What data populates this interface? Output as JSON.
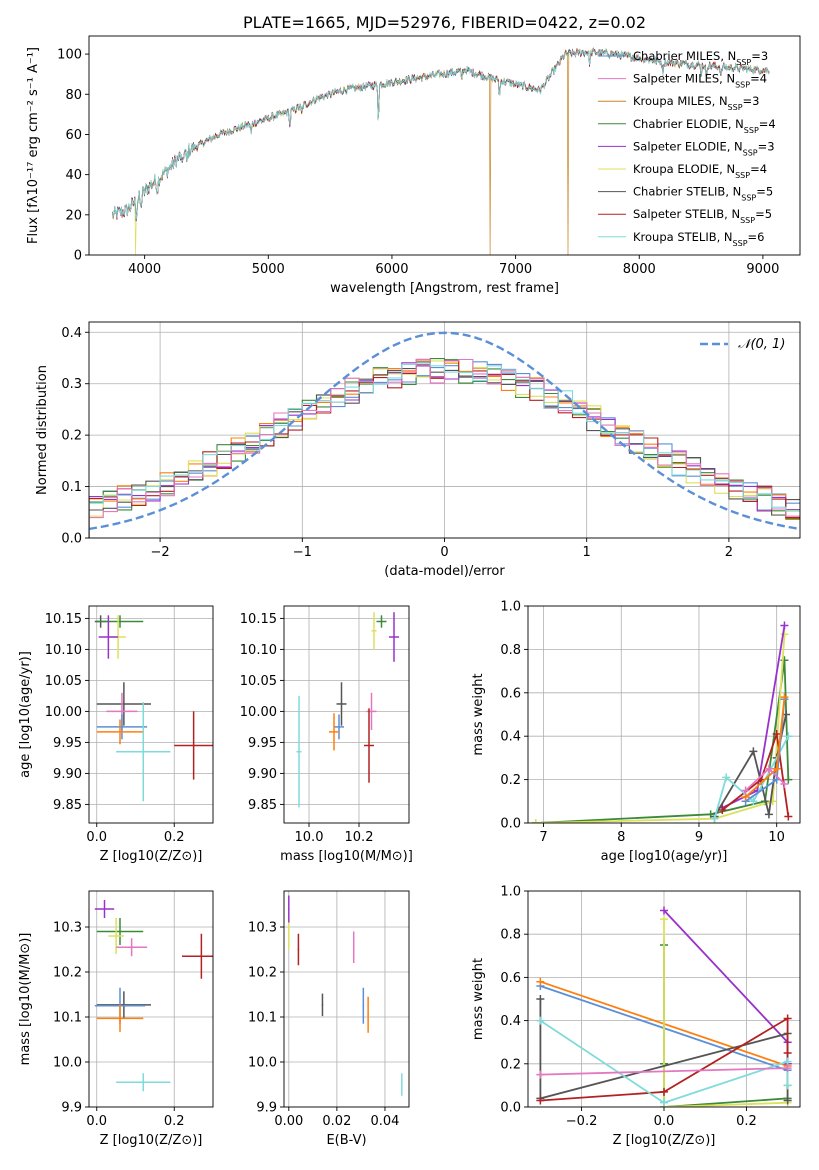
{
  "chart_data": [
    {
      "id": "spectrum",
      "type": "line",
      "title": "PLATE=1665, MJD=52976, FIBERID=0422, z=0.02",
      "xlabel": "wavelength [Angstrom, rest frame]",
      "ylabel": "Flux [fλ10⁻¹⁷ erg cm⁻² s⁻¹ A⁻¹]",
      "xlim": [
        3550,
        9300
      ],
      "ylim": [
        0,
        109
      ],
      "xticks": [
        4000,
        5000,
        6000,
        7000,
        8000,
        9000
      ],
      "yticks": [
        0,
        20,
        40,
        60,
        80,
        100
      ],
      "legend_position": "top-right",
      "series": [
        {
          "name": "Chabrier MILES, NSSP=3",
          "color": "#5b8fd8"
        },
        {
          "name": "Salpeter MILES, NSSP=4",
          "color": "#e377c2"
        },
        {
          "name": "Kroupa MILES, NSSP=3",
          "color": "#c8862a"
        },
        {
          "name": "Chabrier ELODIE, NSSP=4",
          "color": "#3a8a3a"
        },
        {
          "name": "Salpeter ELODIE, NSSP=3",
          "color": "#9932cc"
        },
        {
          "name": "Kroupa ELODIE, NSSP=4",
          "color": "#dde05a"
        },
        {
          "name": "Chabrier STELIB, NSSP=5",
          "color": "#555555"
        },
        {
          "name": "Salpeter STELIB, NSSP=5",
          "color": "#b22222"
        },
        {
          "name": "Kroupa STELIB, NSSP=6",
          "color": "#7fdbdb"
        }
      ],
      "continuum": {
        "x": [
          3750,
          3850,
          3950,
          4050,
          4150,
          4300,
          4450,
          4600,
          4800,
          5000,
          5200,
          5400,
          5600,
          5800,
          6000,
          6200,
          6400,
          6600,
          6800,
          7000,
          7200,
          7400,
          7600,
          7800,
          8000,
          8200,
          8400,
          8600,
          8800,
          9000,
          9100
        ],
        "y": [
          20,
          22,
          28,
          35,
          40,
          50,
          55,
          60,
          64,
          68,
          72,
          78,
          82,
          84,
          86,
          88,
          90,
          92,
          88,
          85,
          82,
          100,
          101,
          100,
          98,
          96,
          95,
          94,
          93,
          92,
          92
        ]
      },
      "dropouts": [
        {
          "series": 5,
          "x": 3925
        },
        {
          "series": 2,
          "x": 6795
        },
        {
          "series": 2,
          "x": 7425
        }
      ]
    },
    {
      "id": "residuals",
      "type": "bar",
      "xlabel": "(data-model)/error",
      "ylabel": "Normed distribution",
      "xlim": [
        -2.5,
        2.5
      ],
      "ylim": [
        0,
        0.42
      ],
      "xticks": [
        -2,
        -1,
        0,
        1,
        2
      ],
      "yticks": [
        0.0,
        0.1,
        0.2,
        0.3,
        0.4
      ],
      "bin_width": 0.1,
      "reference": {
        "name": "𝒩(0, 1)",
        "mean": 0,
        "sigma": 1,
        "color": "#5b8fd8",
        "style": "dashed"
      },
      "legend_position": "top-right",
      "colors": [
        "#5b8fd8",
        "#ff7f0e",
        "#3a8a3a",
        "#9932cc",
        "#dde05a",
        "#555555",
        "#b22222",
        "#e377c2",
        "#7fdbdb"
      ]
    },
    {
      "id": "age-vs-Z",
      "type": "scatter",
      "xlabel": "Z [log10(Z/Z⊙)]",
      "ylabel": "age [log10(age/yr)]",
      "xlim": [
        -0.02,
        0.3
      ],
      "ylim": [
        9.82,
        10.17
      ],
      "xticks": [
        0.0,
        0.2
      ],
      "yticks": [
        9.85,
        9.9,
        9.95,
        10.0,
        10.05,
        10.1,
        10.15
      ],
      "points": [
        {
          "x": 0.01,
          "y": 10.145,
          "xerr": 0.015,
          "yerr": 0.01,
          "color": "#555555"
        },
        {
          "x": 0.06,
          "y": 10.145,
          "xerr": 0.06,
          "yerr": 0.01,
          "color": "#3a8a3a"
        },
        {
          "x": 0.055,
          "y": 10.12,
          "xerr": 0.02,
          "yerr": 0.035,
          "color": "#dde05a"
        },
        {
          "x": 0.03,
          "y": 10.12,
          "xerr": 0.025,
          "yerr": 0.035,
          "color": "#9932cc"
        },
        {
          "x": 0.07,
          "y": 10.012,
          "xerr": 0.07,
          "yerr": 0.035,
          "color": "#555555"
        },
        {
          "x": 0.065,
          "y": 10.0,
          "xerr": 0.04,
          "yerr": 0.03,
          "color": "#e377c2"
        },
        {
          "x": 0.065,
          "y": 9.975,
          "xerr": 0.065,
          "yerr": 0.02,
          "color": "#5b8fd8"
        },
        {
          "x": 0.06,
          "y": 9.967,
          "xerr": 0.06,
          "yerr": 0.02,
          "color": "#ff7f0e"
        },
        {
          "x": 0.12,
          "y": 9.935,
          "xerr": 0.07,
          "yerr": 0.08,
          "color": "#7fdbdb"
        },
        {
          "x": 0.25,
          "y": 9.945,
          "xerr": 0.05,
          "yerr": 0.055,
          "color": "#b22222"
        }
      ]
    },
    {
      "id": "age-vs-mass",
      "type": "scatter",
      "xlabel": "mass [log10(M/M⊙)]",
      "ylabel": "",
      "xlim": [
        9.9,
        10.4
      ],
      "ylim": [
        9.82,
        10.17
      ],
      "xticks": [
        10.0,
        10.2
      ],
      "yticks": [
        9.85,
        9.9,
        9.95,
        10.0,
        10.05,
        10.1,
        10.15
      ],
      "points": [
        {
          "x": 10.29,
          "y": 10.145,
          "xerr": 0.02,
          "yerr": 0.01,
          "color": "#3a8a3a"
        },
        {
          "x": 10.26,
          "y": 10.13,
          "xerr": 0.01,
          "yerr": 0.03,
          "color": "#dde05a"
        },
        {
          "x": 10.34,
          "y": 10.12,
          "xerr": 0.02,
          "yerr": 0.04,
          "color": "#9932cc"
        },
        {
          "x": 10.13,
          "y": 10.012,
          "xerr": 0.02,
          "yerr": 0.035,
          "color": "#555555"
        },
        {
          "x": 10.25,
          "y": 10.0,
          "xerr": 0.02,
          "yerr": 0.03,
          "color": "#e377c2"
        },
        {
          "x": 10.12,
          "y": 9.975,
          "xerr": 0.02,
          "yerr": 0.02,
          "color": "#5b8fd8"
        },
        {
          "x": 10.1,
          "y": 9.967,
          "xerr": 0.02,
          "yerr": 0.03,
          "color": "#ff7f0e"
        },
        {
          "x": 9.96,
          "y": 9.935,
          "xerr": 0.01,
          "yerr": 0.09,
          "color": "#7fdbdb"
        },
        {
          "x": 10.24,
          "y": 9.945,
          "xerr": 0.02,
          "yerr": 0.06,
          "color": "#b22222"
        }
      ]
    },
    {
      "id": "massweight-vs-age",
      "type": "line",
      "xlabel": "age [log10(age/yr)]",
      "ylabel": "mass weight",
      "xlim": [
        6.8,
        10.3
      ],
      "ylim": [
        0,
        1
      ],
      "xticks": [
        7,
        8,
        9,
        10
      ],
      "yticks": [
        0.0,
        0.2,
        0.4,
        0.6,
        0.8,
        1.0
      ],
      "series": [
        {
          "color": "#3a8a3a",
          "x": [
            6.9,
            9.15,
            9.85,
            10.1,
            10.15
          ],
          "y": [
            0.0,
            0.04,
            0.1,
            0.75,
            0.2
          ]
        },
        {
          "color": "#dde05a",
          "x": [
            6.9,
            9.2,
            9.95,
            10.1
          ],
          "y": [
            0.0,
            0.02,
            0.1,
            0.87
          ]
        },
        {
          "color": "#9932cc",
          "x": [
            9.3,
            9.75,
            10.1
          ],
          "y": [
            0.07,
            0.15,
            0.91
          ]
        },
        {
          "color": "#555555",
          "x": [
            9.2,
            9.7,
            9.9,
            10.0,
            10.12
          ],
          "y": [
            0.03,
            0.33,
            0.04,
            0.3,
            0.5
          ]
        },
        {
          "color": "#b22222",
          "x": [
            9.3,
            9.8,
            10.0,
            10.15
          ],
          "y": [
            0.06,
            0.2,
            0.41,
            0.03
          ]
        },
        {
          "color": "#7fdbdb",
          "x": [
            9.2,
            9.35,
            9.7,
            10.15
          ],
          "y": [
            0.02,
            0.21,
            0.1,
            0.4
          ]
        },
        {
          "color": "#5b8fd8",
          "x": [
            9.6,
            10.0,
            10.1
          ],
          "y": [
            0.1,
            0.2,
            0.57
          ]
        },
        {
          "color": "#ff7f0e",
          "x": [
            9.6,
            10.0,
            10.1
          ],
          "y": [
            0.12,
            0.25,
            0.58
          ]
        },
        {
          "color": "#e377c2",
          "x": [
            9.6,
            9.9,
            10.1
          ],
          "y": [
            0.15,
            0.25,
            0.18
          ]
        }
      ]
    },
    {
      "id": "mass-vs-Z",
      "type": "scatter",
      "xlabel": "Z [log10(Z/Z⊙)]",
      "ylabel": "mass [log10(M/M⊙)]",
      "xlim": [
        -0.02,
        0.3
      ],
      "ylim": [
        9.9,
        10.38
      ],
      "xticks": [
        0.0,
        0.2
      ],
      "yticks": [
        9.9,
        10.0,
        10.1,
        10.2,
        10.3
      ],
      "points": [
        {
          "x": 0.02,
          "y": 10.34,
          "xerr": 0.025,
          "yerr": 0.02,
          "color": "#9932cc"
        },
        {
          "x": 0.06,
          "y": 10.29,
          "xerr": 0.06,
          "yerr": 0.03,
          "color": "#3a8a3a"
        },
        {
          "x": 0.05,
          "y": 10.28,
          "xerr": 0.02,
          "yerr": 0.04,
          "color": "#dde05a"
        },
        {
          "x": 0.09,
          "y": 10.255,
          "xerr": 0.04,
          "yerr": 0.02,
          "color": "#e377c2"
        },
        {
          "x": 0.27,
          "y": 10.235,
          "xerr": 0.05,
          "yerr": 0.05,
          "color": "#b22222"
        },
        {
          "x": 0.07,
          "y": 10.127,
          "xerr": 0.07,
          "yerr": 0.03,
          "color": "#555555"
        },
        {
          "x": 0.06,
          "y": 10.125,
          "xerr": 0.065,
          "yerr": 0.04,
          "color": "#5b8fd8"
        },
        {
          "x": 0.06,
          "y": 10.097,
          "xerr": 0.06,
          "yerr": 0.03,
          "color": "#ff7f0e"
        },
        {
          "x": 0.12,
          "y": 9.955,
          "xerr": 0.07,
          "yerr": 0.02,
          "color": "#7fdbdb"
        }
      ]
    },
    {
      "id": "mass-vs-ebv",
      "type": "scatter",
      "xlabel": "E(B-V)",
      "ylabel": "",
      "xlim": [
        -0.002,
        0.05
      ],
      "ylim": [
        9.9,
        10.38
      ],
      "xticks": [
        0.0,
        0.02,
        0.04
      ],
      "yticks": [
        9.9,
        10.0,
        10.1,
        10.2,
        10.3
      ],
      "points": [
        {
          "x": 0.0,
          "y": 10.34,
          "xerr": 0.0003,
          "yerr": 0.03,
          "color": "#9932cc"
        },
        {
          "x": 0.0,
          "y": 10.28,
          "xerr": 0.0003,
          "yerr": 0.03,
          "color": "#dde05a"
        },
        {
          "x": 0.004,
          "y": 10.25,
          "xerr": 0.0003,
          "yerr": 0.035,
          "color": "#b22222"
        },
        {
          "x": 0.027,
          "y": 10.255,
          "xerr": 0.0003,
          "yerr": 0.035,
          "color": "#e377c2"
        },
        {
          "x": 0.014,
          "y": 10.127,
          "xerr": 0.0003,
          "yerr": 0.025,
          "color": "#555555"
        },
        {
          "x": 0.031,
          "y": 10.125,
          "xerr": 0.0003,
          "yerr": 0.04,
          "color": "#5b8fd8"
        },
        {
          "x": 0.033,
          "y": 10.105,
          "xerr": 0.0003,
          "yerr": 0.04,
          "color": "#ff7f0e"
        },
        {
          "x": 0.047,
          "y": 9.95,
          "xerr": 0.0003,
          "yerr": 0.025,
          "color": "#7fdbdb"
        }
      ]
    },
    {
      "id": "massweight-vs-Z",
      "type": "line",
      "xlabel": "Z [log10(Z/Z⊙)]",
      "ylabel": "mass weight",
      "xlim": [
        -0.33,
        0.33
      ],
      "ylim": [
        0,
        1
      ],
      "xticks": [
        -0.2,
        0.0,
        0.2
      ],
      "yticks": [
        0.0,
        0.2,
        0.4,
        0.6,
        0.8,
        1.0
      ],
      "series": [
        {
          "color": "#5b8fd8",
          "x": [
            -0.3,
            0.3,
            0.3
          ],
          "y": [
            0.56,
            0.17,
            0.2
          ]
        },
        {
          "color": "#ff7f0e",
          "x": [
            -0.3,
            0.3,
            0.3
          ],
          "y": [
            0.58,
            0.19,
            0.2
          ]
        },
        {
          "color": "#9932cc",
          "x": [
            0.0,
            0.3,
            0.3
          ],
          "y": [
            0.91,
            0.3,
            0.2
          ]
        },
        {
          "color": "#3a8a3a",
          "x": [
            0.0,
            0.0,
            0.0,
            0.3
          ],
          "y": [
            0.75,
            0.2,
            0.0,
            0.04
          ]
        },
        {
          "color": "#dde05a",
          "x": [
            0.0,
            0.0,
            0.3,
            0.3
          ],
          "y": [
            0.87,
            0.0,
            0.02,
            0.1
          ]
        },
        {
          "color": "#555555",
          "x": [
            -0.3,
            -0.3,
            0.3,
            0.3
          ],
          "y": [
            0.5,
            0.04,
            0.34,
            0.03
          ]
        },
        {
          "color": "#b22222",
          "x": [
            -0.3,
            0.0,
            0.3,
            0.3
          ],
          "y": [
            0.03,
            0.07,
            0.41,
            0.25
          ]
        },
        {
          "color": "#7fdbdb",
          "x": [
            -0.3,
            0.0,
            0.3,
            0.3
          ],
          "y": [
            0.4,
            0.02,
            0.21,
            0.1
          ]
        },
        {
          "color": "#e377c2",
          "x": [
            -0.3,
            0.3
          ],
          "y": [
            0.15,
            0.18
          ]
        }
      ]
    }
  ]
}
